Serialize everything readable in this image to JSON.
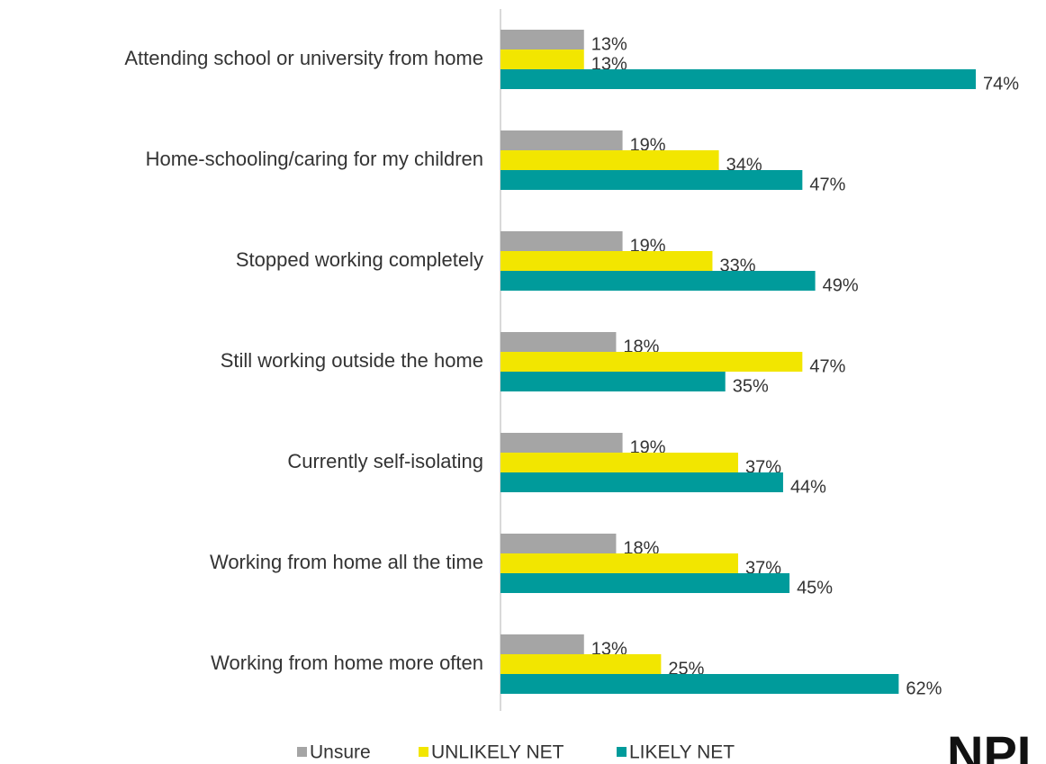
{
  "chart_data": {
    "type": "hbar",
    "categories": [
      "Attending school or university from home",
      "Home-schooling/caring for my children",
      "Stopped working completely",
      "Still working outside the home",
      "Currently self-isolating",
      "Working from home all the time",
      "Working from home more often"
    ],
    "series": [
      {
        "name": "Unsure",
        "color": "#a5a5a5",
        "values": [
          13,
          19,
          19,
          18,
          19,
          18,
          13
        ],
        "value_labels": [
          "13%",
          "19%",
          "19%",
          "18%",
          "19%",
          "18%",
          "13%"
        ]
      },
      {
        "name": "UNLIKELY NET",
        "color": "#f2e600",
        "values": [
          13,
          34,
          33,
          47,
          37,
          37,
          25
        ],
        "value_labels": [
          "13%",
          "34%",
          "33%",
          "47%",
          "37%",
          "37%",
          "25%"
        ]
      },
      {
        "name": "LIKELY NET",
        "color": "#009b9b",
        "values": [
          74,
          47,
          49,
          35,
          44,
          45,
          62
        ],
        "value_labels": [
          "74%",
          "47%",
          "49%",
          "35%",
          "44%",
          "45%",
          "62%"
        ]
      }
    ],
    "xlim": [
      0,
      100
    ],
    "legend": "bottom",
    "logo": "NPI"
  }
}
